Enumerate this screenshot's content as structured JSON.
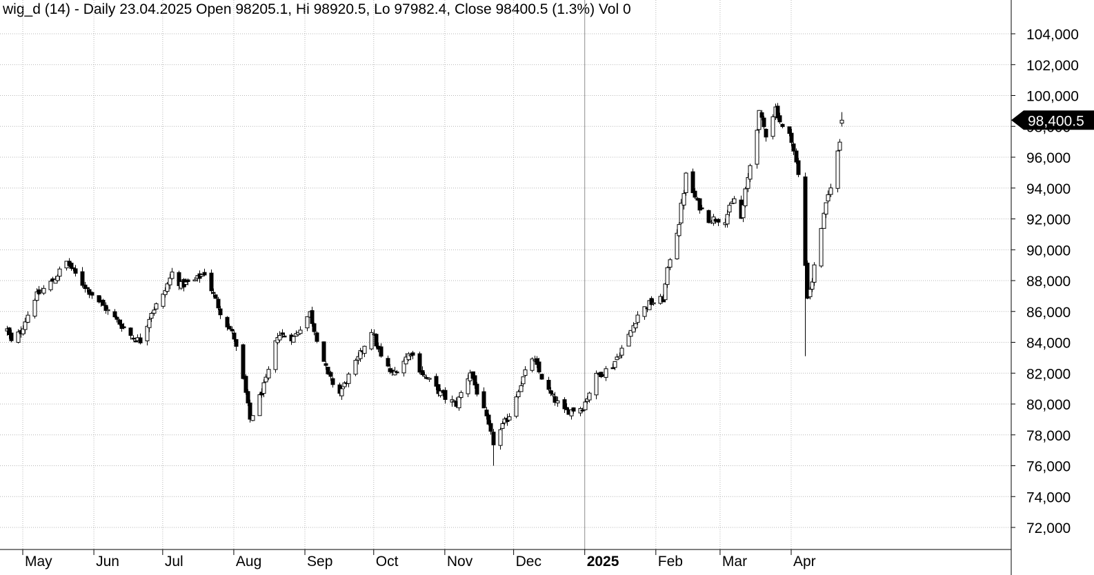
{
  "header": {
    "title": "wig_d (14) - Daily 23.04.2025 Open 98205.1, Hi 98920.5, Lo 97982.4, Close 98400.5 (1.3%) Vol 0"
  },
  "price_tag": "98,400.5",
  "chart_data": {
    "type": "candlestick",
    "title": "wig_d (14) - Daily 23.04.2025 Open 98205.1, Hi 98920.5, Lo 97982.4, Close 98400.5 (1.3%) Vol 0",
    "ylim": [
      70000,
      105500
    ],
    "grid": true,
    "y_ticks": [
      72000,
      74000,
      76000,
      78000,
      80000,
      82000,
      84000,
      86000,
      88000,
      90000,
      92000,
      94000,
      96000,
      98000,
      100000,
      102000,
      104000
    ],
    "y_tick_labels": [
      "72,000",
      "74,000",
      "76,000",
      "78,000",
      "80,000",
      "82,000",
      "84,000",
      "86,000",
      "88,000",
      "90,000",
      "92,000",
      "94,000",
      "96,000",
      "98,000",
      "100,000",
      "102,000",
      "104,000"
    ],
    "x_range": [
      "2024-04-24",
      "2025-04-23"
    ],
    "month_labels": [
      {
        "date": "2024-05-01",
        "label": "May",
        "bold": false
      },
      {
        "date": "2024-06-01",
        "label": "Jun",
        "bold": false
      },
      {
        "date": "2024-07-01",
        "label": "Jul",
        "bold": false
      },
      {
        "date": "2024-08-01",
        "label": "Aug",
        "bold": false
      },
      {
        "date": "2024-09-01",
        "label": "Sep",
        "bold": false
      },
      {
        "date": "2024-10-01",
        "label": "Oct",
        "bold": false
      },
      {
        "date": "2024-11-01",
        "label": "Nov",
        "bold": false
      },
      {
        "date": "2024-12-01",
        "label": "Dec",
        "bold": false
      },
      {
        "date": "2025-01-01",
        "label": "2025",
        "bold": true
      },
      {
        "date": "2025-02-01",
        "label": "Feb",
        "bold": false
      },
      {
        "date": "2025-03-01",
        "label": "Mar",
        "bold": false
      },
      {
        "date": "2025-04-01",
        "label": "Apr",
        "bold": false
      }
    ],
    "anchors": [
      [
        "2024-04-24",
        84800
      ],
      [
        "2024-04-26",
        84000
      ],
      [
        "2024-04-30",
        84700
      ],
      [
        "2024-05-06",
        86900
      ],
      [
        "2024-05-14",
        88000
      ],
      [
        "2024-05-20",
        89200
      ],
      [
        "2024-05-27",
        87800
      ],
      [
        "2024-06-04",
        86500
      ],
      [
        "2024-06-11",
        85400
      ],
      [
        "2024-06-18",
        84300
      ],
      [
        "2024-06-21",
        84100
      ],
      [
        "2024-06-26",
        86000
      ],
      [
        "2024-07-01",
        87000
      ],
      [
        "2024-07-05",
        88500
      ],
      [
        "2024-07-09",
        87700
      ],
      [
        "2024-07-15",
        88000
      ],
      [
        "2024-07-19",
        88500
      ],
      [
        "2024-07-26",
        86000
      ],
      [
        "2024-08-01",
        84300
      ],
      [
        "2024-08-05",
        81500
      ],
      [
        "2024-08-08",
        79000
      ],
      [
        "2024-08-15",
        81500
      ],
      [
        "2024-08-20",
        84500
      ],
      [
        "2024-08-27",
        84300
      ],
      [
        "2024-09-03",
        85900
      ],
      [
        "2024-09-06",
        84300
      ],
      [
        "2024-09-11",
        81800
      ],
      [
        "2024-09-16",
        80700
      ],
      [
        "2024-09-23",
        82600
      ],
      [
        "2024-09-30",
        84800
      ],
      [
        "2024-10-04",
        83000
      ],
      [
        "2024-10-09",
        81900
      ],
      [
        "2024-10-17",
        83400
      ],
      [
        "2024-10-22",
        82000
      ],
      [
        "2024-10-28",
        81000
      ],
      [
        "2024-11-01",
        80400
      ],
      [
        "2024-11-06",
        80000
      ],
      [
        "2024-11-12",
        82100
      ],
      [
        "2024-11-18",
        79500
      ],
      [
        "2024-11-22",
        77500
      ],
      [
        "2024-11-29",
        79300
      ],
      [
        "2024-12-03",
        81000
      ],
      [
        "2024-12-09",
        83000
      ],
      [
        "2024-12-16",
        80800
      ],
      [
        "2024-12-23",
        79500
      ],
      [
        "2024-12-31",
        79800
      ],
      [
        "2025-01-06",
        81800
      ],
      [
        "2025-01-13",
        82500
      ],
      [
        "2025-01-20",
        84400
      ],
      [
        "2025-01-24",
        85800
      ],
      [
        "2025-01-29",
        86500
      ],
      [
        "2025-02-04",
        86800
      ],
      [
        "2025-02-07",
        89500
      ],
      [
        "2025-02-11",
        91800
      ],
      [
        "2025-02-14",
        94800
      ],
      [
        "2025-02-19",
        93000
      ],
      [
        "2025-02-24",
        92000
      ],
      [
        "2025-03-03",
        92000
      ],
      [
        "2025-03-07",
        93300
      ],
      [
        "2025-03-10",
        92000
      ],
      [
        "2025-03-14",
        95500
      ],
      [
        "2025-03-18",
        98800
      ],
      [
        "2025-03-21",
        97500
      ],
      [
        "2025-03-25",
        99200
      ],
      [
        "2025-03-28",
        97900
      ],
      [
        "2025-04-01",
        97200
      ],
      [
        "2025-04-04",
        94800
      ],
      [
        "2025-04-07",
        89000
      ],
      [
        "2025-04-08",
        87000
      ],
      [
        "2025-04-10",
        88000
      ],
      [
        "2025-04-14",
        91500
      ],
      [
        "2025-04-17",
        93500
      ],
      [
        "2025-04-22",
        97000
      ],
      [
        "2025-04-23",
        98400.5
      ]
    ],
    "last_bar": {
      "date": "2025-04-23",
      "open": 98205.1,
      "high": 98920.5,
      "low": 97982.4,
      "close": 98400.5
    }
  }
}
